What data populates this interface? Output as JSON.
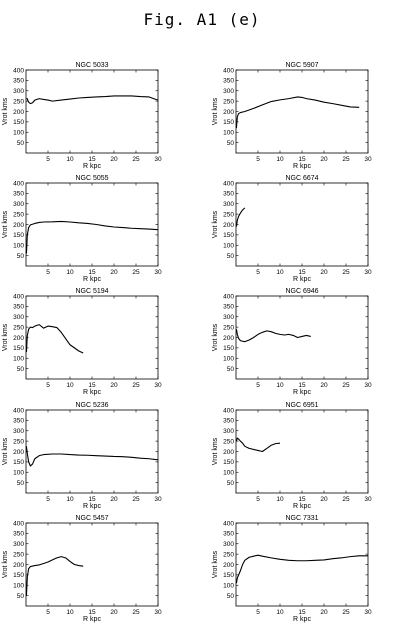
{
  "figure": {
    "title": "Fig. A1 (e)"
  },
  "chart_data": [
    {
      "type": "line",
      "title": "NGC 5033",
      "xlabel": "R kpc",
      "ylabel": "Vrot kms",
      "xlim": [
        0,
        30
      ],
      "ylim": [
        0,
        400
      ],
      "xticks": [
        5,
        10,
        15,
        20,
        25,
        30
      ],
      "yticks": [
        50,
        100,
        150,
        200,
        250,
        300,
        350,
        400
      ],
      "x": [
        0.2,
        0.6,
        1,
        1.5,
        2,
        3,
        4,
        5,
        6,
        8,
        10,
        12,
        14,
        16,
        18,
        20,
        22,
        24,
        26,
        28,
        29,
        30
      ],
      "y": [
        265,
        245,
        238,
        242,
        255,
        262,
        258,
        255,
        250,
        255,
        260,
        265,
        268,
        270,
        272,
        275,
        275,
        275,
        272,
        270,
        262,
        255
      ]
    },
    {
      "type": "line",
      "title": "NGC 5907",
      "xlabel": "R kpc",
      "ylabel": "Vrot kms",
      "xlim": [
        0,
        30
      ],
      "ylim": [
        0,
        400
      ],
      "xticks": [
        5,
        10,
        15,
        20,
        25,
        30
      ],
      "yticks": [
        50,
        100,
        150,
        200,
        250,
        300,
        350,
        400
      ],
      "x": [
        0.1,
        0.3,
        0.6,
        1,
        2,
        4,
        6,
        8,
        10,
        12,
        14,
        15,
        16,
        18,
        20,
        22,
        24,
        26,
        28
      ],
      "y": [
        120,
        175,
        190,
        195,
        200,
        215,
        232,
        248,
        256,
        262,
        270,
        268,
        262,
        255,
        245,
        238,
        230,
        222,
        220
      ]
    },
    {
      "type": "line",
      "title": "NGC 5055",
      "xlabel": "R kpc",
      "ylabel": "Vrot kms",
      "xlim": [
        0,
        30
      ],
      "ylim": [
        0,
        400
      ],
      "xticks": [
        5,
        10,
        15,
        20,
        25,
        30
      ],
      "yticks": [
        50,
        100,
        150,
        200,
        250,
        300,
        350,
        400
      ],
      "x": [
        0.1,
        0.3,
        0.6,
        1,
        2,
        3,
        4,
        6,
        8,
        10,
        12,
        14,
        16,
        18,
        20,
        22,
        24,
        26,
        28,
        30
      ],
      "y": [
        60,
        150,
        185,
        198,
        205,
        210,
        212,
        213,
        215,
        212,
        208,
        205,
        200,
        193,
        188,
        185,
        182,
        180,
        178,
        175
      ]
    },
    {
      "type": "line",
      "title": "NGC 6674",
      "xlabel": "R kpc",
      "ylabel": "Vrot kms",
      "xlim": [
        0,
        30
      ],
      "ylim": [
        0,
        400
      ],
      "xticks": [
        5,
        10,
        15,
        20,
        25,
        30
      ],
      "yticks": [
        50,
        100,
        150,
        200,
        250,
        300,
        350,
        400
      ],
      "x": [
        0.1,
        0.3,
        0.6,
        1,
        1.5,
        2
      ],
      "y": [
        190,
        220,
        240,
        255,
        270,
        280
      ]
    },
    {
      "type": "line",
      "title": "NGC 5194",
      "xlabel": "R kpc",
      "ylabel": "Vrot kms",
      "xlim": [
        0,
        30
      ],
      "ylim": [
        0,
        400
      ],
      "xticks": [
        5,
        10,
        15,
        20,
        25,
        30
      ],
      "yticks": [
        50,
        100,
        150,
        200,
        250,
        300,
        350,
        400
      ],
      "x": [
        0.1,
        0.3,
        0.6,
        1,
        1.5,
        2,
        3,
        4,
        5,
        6,
        7,
        8,
        9,
        10,
        11,
        12,
        13
      ],
      "y": [
        130,
        210,
        240,
        250,
        248,
        255,
        262,
        245,
        255,
        252,
        248,
        225,
        195,
        165,
        150,
        135,
        125
      ]
    },
    {
      "type": "line",
      "title": "NGC 6946",
      "xlabel": "R kpc",
      "ylabel": "Vrot kms",
      "xlim": [
        0,
        30
      ],
      "ylim": [
        0,
        400
      ],
      "xticks": [
        5,
        10,
        15,
        20,
        25,
        30
      ],
      "yticks": [
        50,
        100,
        150,
        200,
        250,
        300,
        350,
        400
      ],
      "x": [
        0.1,
        0.3,
        0.6,
        1,
        1.5,
        2,
        3,
        4,
        5,
        6,
        7,
        8,
        9,
        10,
        11,
        12,
        13,
        14,
        15,
        16,
        17
      ],
      "y": [
        240,
        215,
        195,
        185,
        182,
        180,
        188,
        200,
        215,
        225,
        232,
        228,
        220,
        215,
        212,
        215,
        210,
        200,
        205,
        210,
        205
      ]
    },
    {
      "type": "line",
      "title": "NGC 5236",
      "xlabel": "R kpc",
      "ylabel": "Vrot kms",
      "xlim": [
        0,
        30
      ],
      "ylim": [
        0,
        400
      ],
      "xticks": [
        5,
        10,
        15,
        20,
        25,
        30
      ],
      "yticks": [
        50,
        100,
        150,
        200,
        250,
        300,
        350,
        400
      ],
      "x": [
        0.1,
        0.3,
        0.6,
        1,
        1.5,
        2,
        3,
        4,
        6,
        8,
        10,
        12,
        14,
        16,
        18,
        20,
        22,
        24,
        26,
        28,
        30
      ],
      "y": [
        225,
        190,
        150,
        130,
        140,
        165,
        180,
        185,
        188,
        188,
        185,
        183,
        182,
        180,
        178,
        176,
        175,
        172,
        168,
        165,
        160
      ]
    },
    {
      "type": "line",
      "title": "NGC 6951",
      "xlabel": "R kpc",
      "ylabel": "Vrot kms",
      "xlim": [
        0,
        30
      ],
      "ylim": [
        0,
        400
      ],
      "xticks": [
        5,
        10,
        15,
        20,
        25,
        30
      ],
      "yticks": [
        50,
        100,
        150,
        200,
        250,
        300,
        350,
        400
      ],
      "x": [
        0.1,
        0.3,
        0.6,
        1,
        1.5,
        2,
        3,
        4,
        5,
        6,
        7,
        8,
        9,
        10
      ],
      "y": [
        250,
        265,
        260,
        250,
        240,
        225,
        215,
        210,
        205,
        200,
        215,
        230,
        238,
        240
      ]
    },
    {
      "type": "line",
      "title": "NGC 5457",
      "xlabel": "R kpc",
      "ylabel": "Vrot kms",
      "xlim": [
        0,
        30
      ],
      "ylim": [
        0,
        400
      ],
      "xticks": [
        5,
        10,
        15,
        20,
        25,
        30
      ],
      "yticks": [
        50,
        100,
        150,
        200,
        250,
        300,
        350,
        400
      ],
      "x": [
        0.1,
        0.3,
        0.6,
        1,
        2,
        3,
        4,
        5,
        6,
        7,
        8,
        9,
        10,
        11,
        12,
        13
      ],
      "y": [
        50,
        140,
        180,
        190,
        195,
        198,
        205,
        212,
        222,
        232,
        238,
        232,
        215,
        200,
        195,
        192
      ]
    },
    {
      "type": "line",
      "title": "NGC 7331",
      "xlabel": "R kpc",
      "ylabel": "Vrot kms",
      "xlim": [
        0,
        30
      ],
      "ylim": [
        0,
        400
      ],
      "xticks": [
        5,
        10,
        15,
        20,
        25,
        30
      ],
      "yticks": [
        50,
        100,
        150,
        200,
        250,
        300,
        350,
        400
      ],
      "x": [
        0.1,
        0.3,
        0.6,
        1,
        1.5,
        2,
        3,
        4,
        5,
        6,
        8,
        10,
        12,
        14,
        16,
        18,
        20,
        22,
        24,
        26,
        28,
        30
      ],
      "y": [
        110,
        135,
        150,
        170,
        200,
        220,
        235,
        240,
        245,
        240,
        232,
        225,
        220,
        218,
        218,
        220,
        222,
        228,
        232,
        238,
        242,
        242
      ]
    }
  ]
}
